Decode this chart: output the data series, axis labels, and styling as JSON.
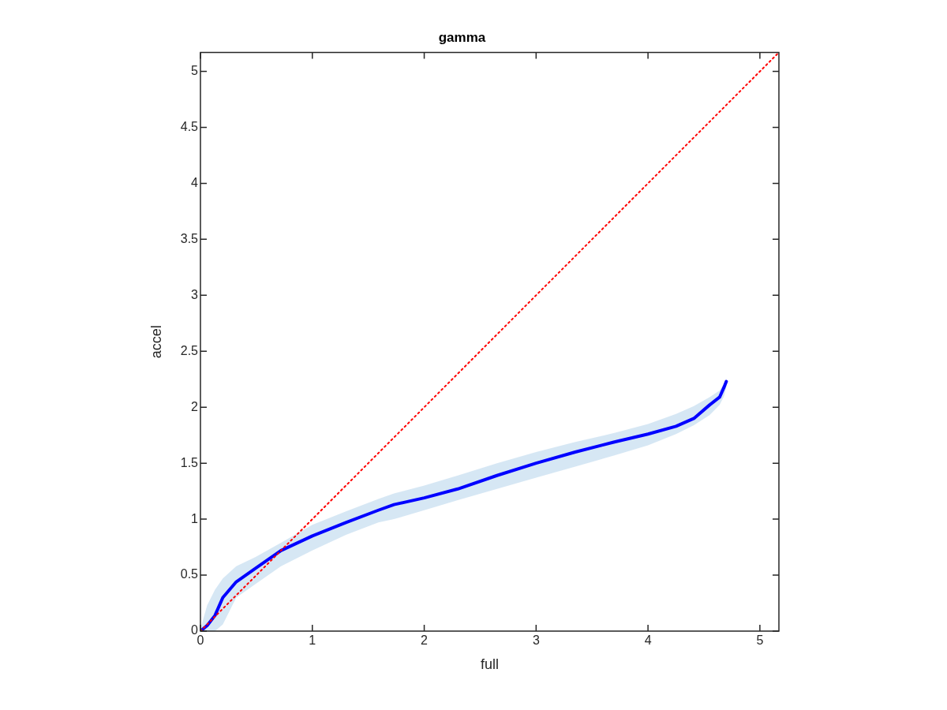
{
  "chart_data": {
    "type": "line",
    "title": "gamma",
    "xlabel": "full",
    "ylabel": "accel",
    "xlim": [
      0,
      5.17
    ],
    "xticks": [
      0,
      1,
      2,
      3,
      4,
      5
    ],
    "ylim": [
      0,
      5.17
    ],
    "yticks": [
      0,
      0.5,
      1,
      1.5,
      2,
      2.5,
      3,
      3.5,
      4,
      4.5,
      5
    ],
    "marker": "none",
    "grid": false,
    "legend": false,
    "series": [
      {
        "color": "#0000ff",
        "line_style": "solid",
        "x": [
          0,
          0.06,
          0.13,
          0.2,
          0.32,
          0.49,
          0.72,
          1.0,
          1.3,
          1.59,
          1.73,
          2.0,
          2.3,
          2.65,
          3.0,
          3.35,
          3.7,
          4.0,
          4.25,
          4.41,
          4.55,
          4.64,
          4.68,
          4.7
        ],
        "values": [
          0,
          0.05,
          0.14,
          0.3,
          0.44,
          0.56,
          0.72,
          0.85,
          0.97,
          1.08,
          1.13,
          1.19,
          1.27,
          1.39,
          1.5,
          1.6,
          1.69,
          1.76,
          1.83,
          1.9,
          2.02,
          2.09,
          2.18,
          2.23
        ],
        "upper": [
          0.02,
          0.23,
          0.37,
          0.47,
          0.58,
          0.66,
          0.79,
          0.95,
          1.07,
          1.18,
          1.23,
          1.3,
          1.39,
          1.5,
          1.6,
          1.69,
          1.77,
          1.85,
          1.94,
          2.01,
          2.09,
          2.15,
          2.21,
          2.25
        ],
        "lower": [
          0,
          0,
          0,
          0.06,
          0.3,
          0.42,
          0.58,
          0.72,
          0.86,
          0.97,
          1.0,
          1.08,
          1.17,
          1.27,
          1.37,
          1.47,
          1.57,
          1.66,
          1.76,
          1.84,
          1.93,
          2.02,
          2.1,
          2.18
        ]
      },
      {
        "color": "#ff0000",
        "line_style": "dotted",
        "x": [
          0,
          5.17
        ],
        "values": [
          0,
          5.17
        ]
      }
    ]
  }
}
